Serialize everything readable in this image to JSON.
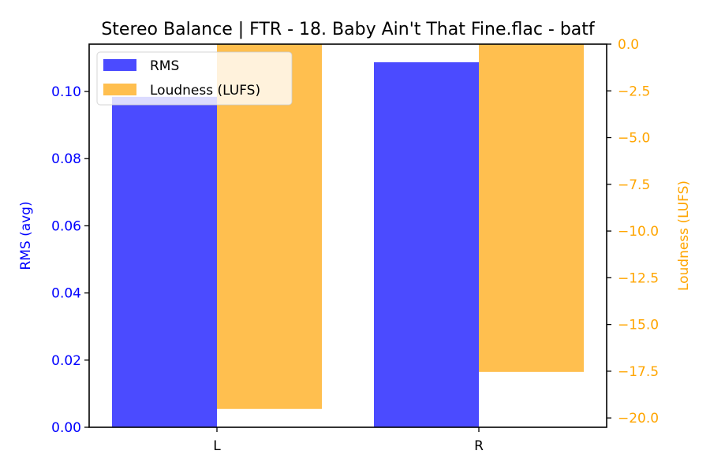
{
  "chart_data": {
    "type": "bar",
    "title": "Stereo Balance | FTR - 18. Baby Ain't That Fine.flac - batf",
    "categories": [
      "L",
      "R"
    ],
    "xlabel": "",
    "series": [
      {
        "name": "RMS",
        "axis": "left",
        "color": "#4b4bff",
        "values": [
          0.0984,
          0.1087
        ]
      },
      {
        "name": "Loudness (LUFS)",
        "axis": "right",
        "color": "#ffbf4f",
        "values": [
          -19.52,
          -17.54
        ]
      }
    ],
    "y_left": {
      "label": "RMS (avg)",
      "color": "#0000ff",
      "ylim": [
        0.0,
        0.1141
      ],
      "ticks": [
        0.0,
        0.02,
        0.04,
        0.06,
        0.08,
        0.1
      ],
      "tick_labels": [
        "0.00",
        "0.02",
        "0.04",
        "0.06",
        "0.08",
        "0.10"
      ]
    },
    "y_right": {
      "label": "Loudness (LUFS)",
      "color": "#ffa500",
      "ylim": [
        -20.5,
        0.0
      ],
      "ticks": [
        0.0,
        -2.5,
        -5.0,
        -7.5,
        -10.0,
        -12.5,
        -15.0,
        -17.5,
        -20.0
      ],
      "tick_labels": [
        "0.0",
        "−2.5",
        "−5.0",
        "−7.5",
        "−10.0",
        "−12.5",
        "−15.0",
        "−17.5",
        "−20.0"
      ]
    },
    "legend": {
      "position": "upper left",
      "entries": [
        "RMS",
        "Loudness (LUFS)"
      ]
    },
    "grid": false
  }
}
